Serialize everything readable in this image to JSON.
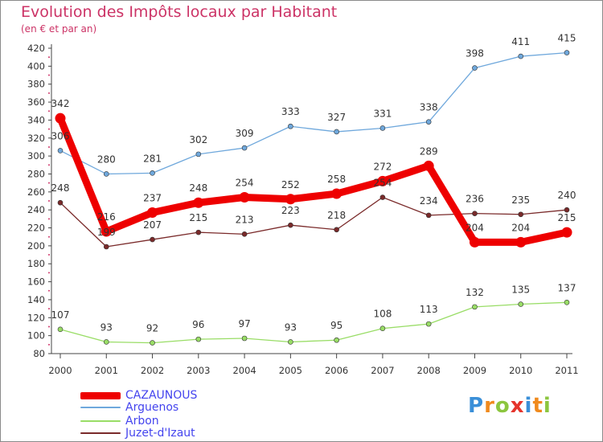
{
  "title": "Evolution des Impôts locaux par Habitant",
  "subtitle": "(en € et par an)",
  "logo_text": "Proxiti",
  "chart_data": {
    "type": "line",
    "title": "Evolution des Impôts locaux par Habitant",
    "subtitle": "(en € et par an)",
    "xlabel": "",
    "ylabel": "",
    "ylim": [
      80,
      420
    ],
    "ystep": 20,
    "grid": false,
    "legend_position": "bottom-left",
    "categories": [
      "2000",
      "2001",
      "2002",
      "2003",
      "2004",
      "2005",
      "2006",
      "2007",
      "2008",
      "2009",
      "2010",
      "2011"
    ],
    "series": [
      {
        "name": "CAZAUNOUS",
        "color": "#ee0000",
        "values": [
          342,
          216,
          237,
          248,
          254,
          252,
          258,
          272,
          289,
          204,
          204,
          215
        ]
      },
      {
        "name": "Arguenos",
        "color": "#6fa8dc",
        "values": [
          306,
          280,
          281,
          302,
          309,
          333,
          327,
          331,
          338,
          398,
          411,
          415
        ]
      },
      {
        "name": "Arbon",
        "color": "#99dd66",
        "values": [
          107,
          93,
          92,
          96,
          97,
          93,
          95,
          108,
          113,
          132,
          135,
          137
        ]
      },
      {
        "name": "Juzet-d'Izaut",
        "color": "#7a2a2a",
        "values": [
          248,
          199,
          207,
          215,
          213,
          223,
          218,
          254,
          234,
          236,
          235,
          240
        ]
      }
    ]
  }
}
